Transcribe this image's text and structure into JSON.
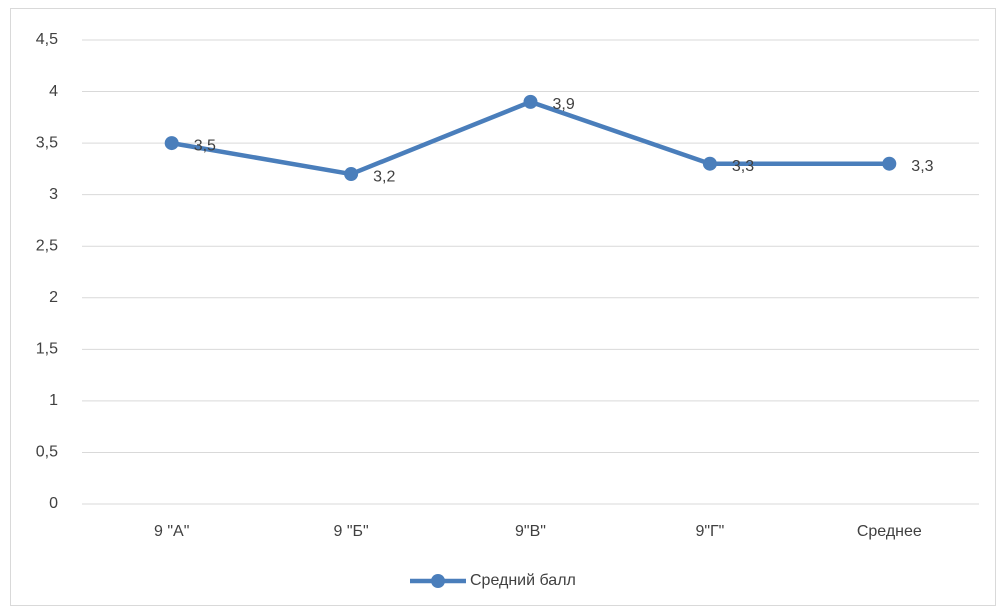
{
  "chart_data": {
    "type": "line",
    "categories": [
      "9 \"А\"",
      "9 \"Б\"",
      "9\"В\"",
      "9\"Г\"",
      "Среднее"
    ],
    "series": [
      {
        "name": "Средний балл",
        "color": "#4a7ebb",
        "values": [
          3.5,
          3.2,
          3.9,
          3.3,
          3.3
        ],
        "value_labels": [
          "3,5",
          "3,2",
          "3,9",
          "3,3",
          "3,3"
        ]
      }
    ],
    "ylim": [
      0,
      4.5
    ],
    "yticks": [
      0,
      {
        "value": 0.5,
        "label": "0,5"
      },
      1,
      {
        "value": 1.5,
        "label": "1,5"
      },
      2,
      {
        "value": 2.5,
        "label": "2,5"
      },
      3,
      {
        "value": 3.5,
        "label": "3,5"
      },
      4,
      {
        "value": 4.5,
        "label": "4,5"
      }
    ],
    "grid": true,
    "legend": "bottom"
  }
}
